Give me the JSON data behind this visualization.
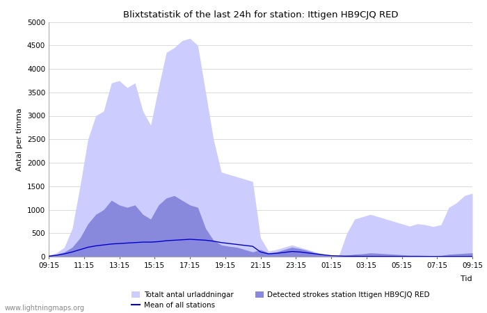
{
  "title": "Blixtstatistik of the last 24h for station: Ittigen HB9CJQ RED",
  "ylabel": "Antal per timma",
  "xlabel": "Tid",
  "watermark": "www.lightningmaps.org",
  "x_labels": [
    "09:15",
    "11:15",
    "13:15",
    "15:15",
    "17:15",
    "19:15",
    "21:15",
    "23:15",
    "01:15",
    "03:15",
    "05:15",
    "07:15",
    "09:15"
  ],
  "ylim": [
    0,
    5000
  ],
  "yticks": [
    0,
    500,
    1000,
    1500,
    2000,
    2500,
    3000,
    3500,
    4000,
    4500,
    5000
  ],
  "legend_total": "Totalt antal urladdningar",
  "legend_detected": "Detected strokes station Ittigen HB9CJQ RED",
  "legend_mean": "Mean of all stations",
  "color_total": "#ccccff",
  "color_detected": "#8888dd",
  "color_mean": "#0000cc",
  "background": "#ffffff",
  "total_values": [
    30,
    80,
    200,
    600,
    1500,
    2500,
    3000,
    3100,
    3700,
    3750,
    3600,
    3700,
    3100,
    2800,
    3600,
    4350,
    4450,
    4600,
    4650,
    4500,
    3500,
    2500,
    1800,
    1750,
    1700,
    1650,
    1600,
    400,
    120,
    150,
    200,
    250,
    200,
    150,
    100,
    50,
    20,
    30,
    500,
    800,
    850,
    900,
    850,
    800,
    750,
    700,
    650,
    700,
    680,
    640,
    680,
    1050,
    1150,
    1300,
    1350
  ],
  "detected_values": [
    20,
    50,
    100,
    200,
    400,
    700,
    900,
    1000,
    1200,
    1100,
    1050,
    1100,
    900,
    800,
    1100,
    1250,
    1300,
    1200,
    1100,
    1050,
    600,
    350,
    250,
    220,
    200,
    150,
    100,
    150,
    80,
    100,
    150,
    200,
    170,
    130,
    80,
    40,
    10,
    10,
    30,
    50,
    60,
    80,
    70,
    60,
    50,
    40,
    30,
    30,
    25,
    20,
    25,
    50,
    60,
    70,
    80
  ],
  "mean_values": [
    10,
    30,
    60,
    100,
    150,
    200,
    230,
    250,
    270,
    280,
    290,
    300,
    310,
    310,
    320,
    340,
    350,
    360,
    370,
    360,
    350,
    330,
    300,
    280,
    260,
    240,
    220,
    100,
    60,
    70,
    90,
    110,
    100,
    80,
    60,
    40,
    20,
    15,
    10,
    8,
    6,
    5,
    5,
    5,
    5,
    4,
    4,
    4,
    4,
    4,
    4,
    4,
    4,
    4,
    4
  ]
}
